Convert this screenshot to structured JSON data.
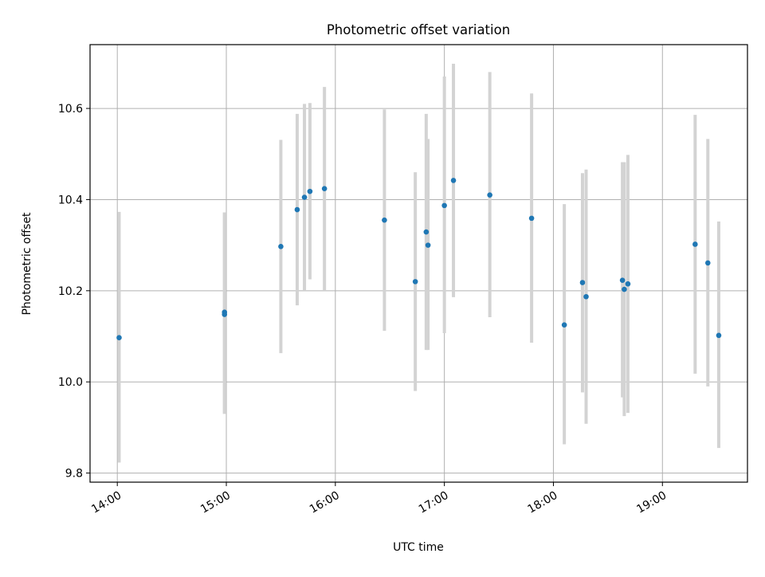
{
  "chart_data": {
    "type": "scatter",
    "title": "Photometric offset variation",
    "xlabel": "UTC time",
    "ylabel": "Photometric offset",
    "x_tick_labels": [
      "14:00",
      "15:00",
      "16:00",
      "17:00",
      "18:00",
      "19:00"
    ],
    "x_tick_values_hours": [
      14,
      15,
      16,
      17,
      18,
      19
    ],
    "y_ticks": [
      9.8,
      10.0,
      10.2,
      10.4,
      10.6
    ],
    "y_tick_labels": [
      "9.8",
      "10.0",
      "10.2",
      "10.4",
      "10.6"
    ],
    "xlim_hours": [
      13.75,
      19.78
    ],
    "ylim": [
      9.78,
      10.74
    ],
    "grid": true,
    "marker_color": "#1f77b4",
    "errorbar_color": "#d3d3d3",
    "series": [
      {
        "points": [
          {
            "time": "14:01",
            "y": 10.097,
            "ylow": 9.823,
            "yhigh": 10.373
          },
          {
            "time": "14:59",
            "y": 10.153,
            "ylow": 9.93,
            "yhigh": 10.372
          },
          {
            "time": "14:59",
            "y": 10.148,
            "ylow": 9.93,
            "yhigh": 10.372
          },
          {
            "time": "15:30",
            "y": 10.297,
            "ylow": 10.063,
            "yhigh": 10.531
          },
          {
            "time": "15:39",
            "y": 10.378,
            "ylow": 10.168,
            "yhigh": 10.588
          },
          {
            "time": "15:43",
            "y": 10.405,
            "ylow": 10.2,
            "yhigh": 10.61
          },
          {
            "time": "15:46",
            "y": 10.418,
            "ylow": 10.225,
            "yhigh": 10.612
          },
          {
            "time": "15:54",
            "y": 10.424,
            "ylow": 10.2,
            "yhigh": 10.647
          },
          {
            "time": "16:27",
            "y": 10.355,
            "ylow": 10.112,
            "yhigh": 10.598
          },
          {
            "time": "16:44",
            "y": 10.22,
            "ylow": 9.98,
            "yhigh": 10.46
          },
          {
            "time": "16:50",
            "y": 10.329,
            "ylow": 10.07,
            "yhigh": 10.588
          },
          {
            "time": "16:51",
            "y": 10.3,
            "ylow": 10.07,
            "yhigh": 10.533
          },
          {
            "time": "17:00",
            "y": 10.387,
            "ylow": 10.107,
            "yhigh": 10.67
          },
          {
            "time": "17:05",
            "y": 10.442,
            "ylow": 10.186,
            "yhigh": 10.698
          },
          {
            "time": "17:25",
            "y": 10.41,
            "ylow": 10.142,
            "yhigh": 10.68
          },
          {
            "time": "17:48",
            "y": 10.359,
            "ylow": 10.086,
            "yhigh": 10.633
          },
          {
            "time": "18:06",
            "y": 10.125,
            "ylow": 9.863,
            "yhigh": 10.39
          },
          {
            "time": "18:16",
            "y": 10.218,
            "ylow": 9.977,
            "yhigh": 10.458
          },
          {
            "time": "18:18",
            "y": 10.187,
            "ylow": 9.908,
            "yhigh": 10.466
          },
          {
            "time": "18:38",
            "y": 10.223,
            "ylow": 9.966,
            "yhigh": 10.482
          },
          {
            "time": "18:39",
            "y": 10.203,
            "ylow": 9.925,
            "yhigh": 10.482
          },
          {
            "time": "18:41",
            "y": 10.215,
            "ylow": 9.932,
            "yhigh": 10.498
          },
          {
            "time": "19:18",
            "y": 10.302,
            "ylow": 10.018,
            "yhigh": 10.586
          },
          {
            "time": "19:25",
            "y": 10.261,
            "ylow": 9.99,
            "yhigh": 10.533
          },
          {
            "time": "19:31",
            "y": 10.102,
            "ylow": 9.855,
            "yhigh": 10.352
          }
        ]
      }
    ]
  }
}
